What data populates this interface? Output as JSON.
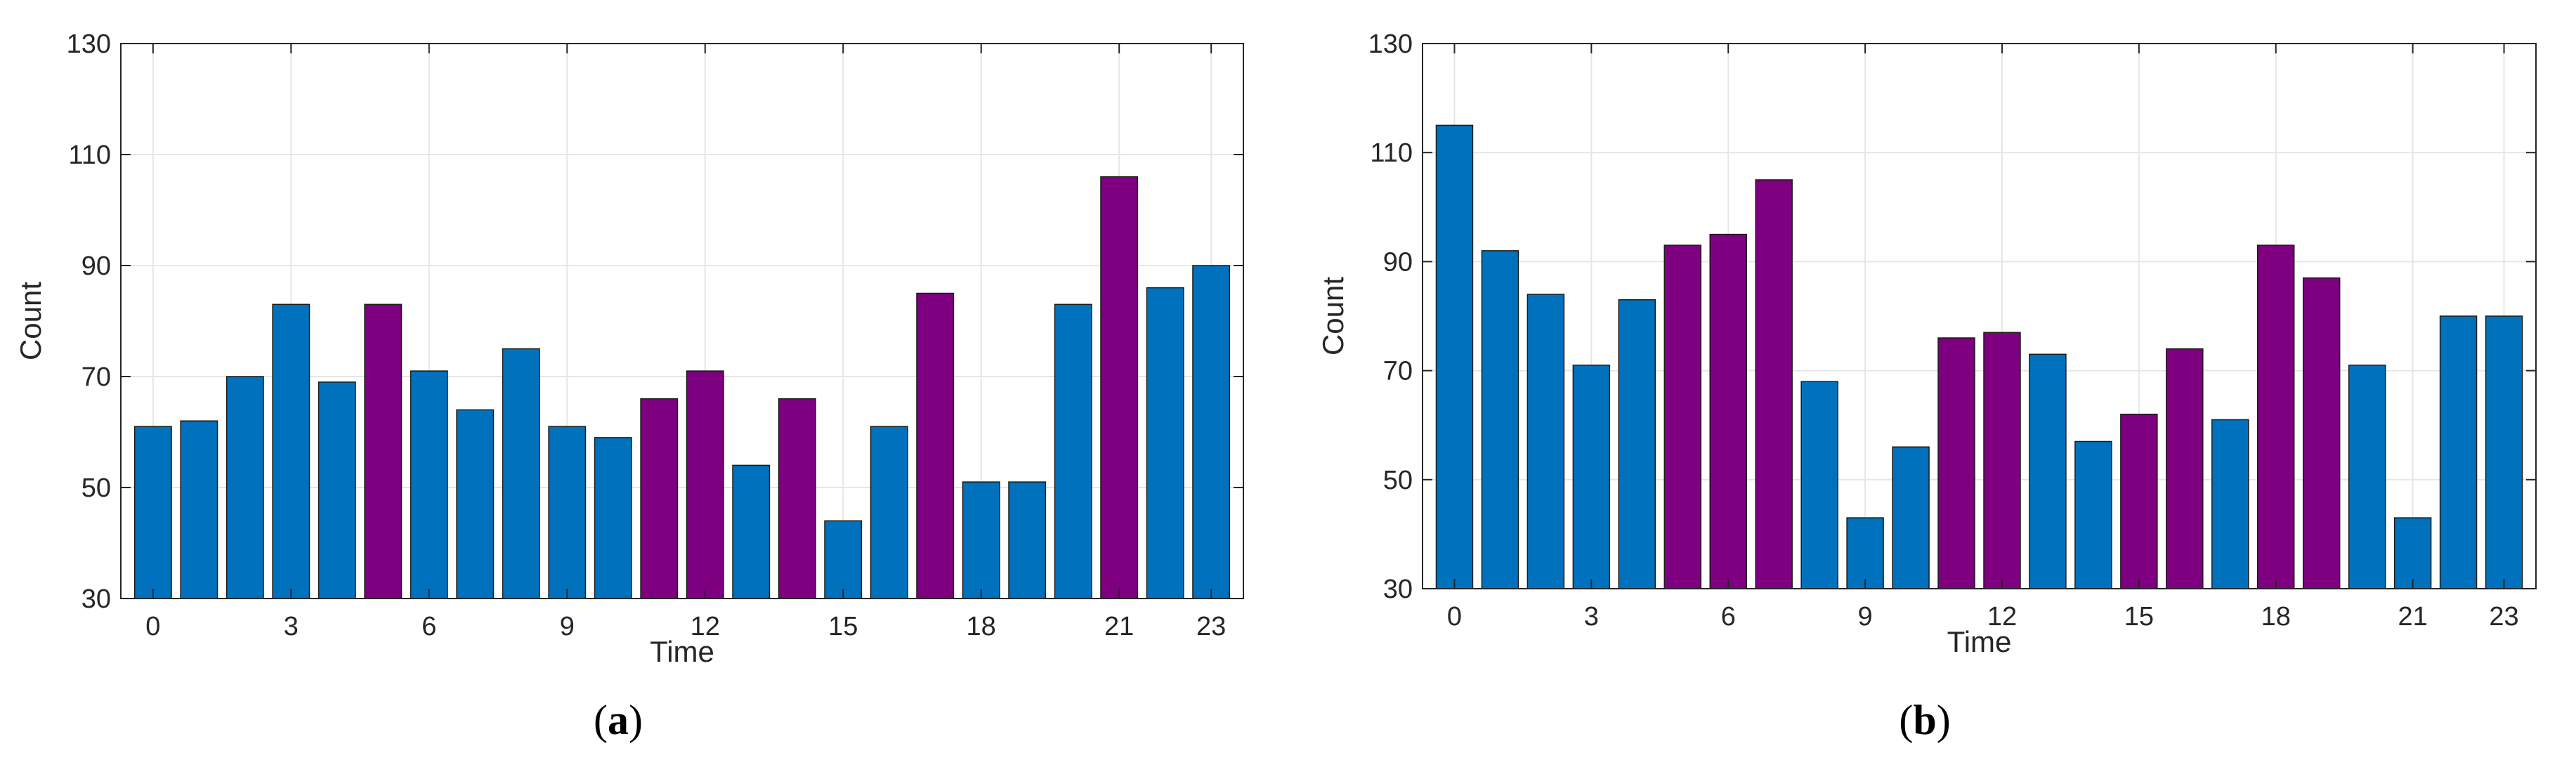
{
  "figure": {
    "panels": [
      {
        "caption_open": "(",
        "caption_letter": "a",
        "caption_close": ")"
      },
      {
        "caption_open": "(",
        "caption_letter": "b",
        "caption_close": ")"
      }
    ]
  },
  "colors": {
    "blue": "#0072BD",
    "purple": "#7E0080",
    "edge": "#1a1a1a",
    "grid": "#e6e6e6",
    "axis": "#262626"
  },
  "chart_data": [
    {
      "type": "bar",
      "caption": "(a)",
      "xlabel": "Time",
      "ylabel": "Count",
      "ylim": [
        30,
        130
      ],
      "yticks": [
        30,
        50,
        70,
        90,
        110,
        130
      ],
      "xticks": [
        0,
        3,
        6,
        9,
        12,
        15,
        18,
        21,
        23
      ],
      "categories": [
        0,
        1,
        2,
        3,
        4,
        5,
        6,
        7,
        8,
        9,
        10,
        11,
        12,
        13,
        14,
        15,
        16,
        17,
        18,
        19,
        20,
        21,
        22,
        23
      ],
      "values": [
        61,
        62,
        70,
        83,
        69,
        83,
        71,
        64,
        75,
        61,
        59,
        66,
        71,
        54,
        66,
        44,
        61,
        85,
        51,
        51,
        83,
        106,
        86,
        90
      ],
      "highlighted": [
        5,
        11,
        12,
        14,
        17,
        21
      ],
      "grid": true
    },
    {
      "type": "bar",
      "caption": "(b)",
      "xlabel": "Time",
      "ylabel": "Count",
      "ylim": [
        30,
        130
      ],
      "yticks": [
        30,
        50,
        70,
        90,
        110,
        130
      ],
      "xticks": [
        0,
        3,
        6,
        9,
        12,
        15,
        18,
        21,
        23
      ],
      "categories": [
        0,
        1,
        2,
        3,
        4,
        5,
        6,
        7,
        8,
        9,
        10,
        11,
        12,
        13,
        14,
        15,
        16,
        17,
        18,
        19,
        20,
        21,
        22,
        23
      ],
      "values": [
        115,
        92,
        84,
        71,
        83,
        93,
        95,
        105,
        68,
        43,
        56,
        76,
        77,
        73,
        57,
        62,
        74,
        61,
        93,
        87,
        71,
        43,
        80,
        80
      ],
      "highlighted": [
        5,
        6,
        7,
        11,
        12,
        15,
        16,
        18,
        19
      ],
      "grid": true
    }
  ]
}
